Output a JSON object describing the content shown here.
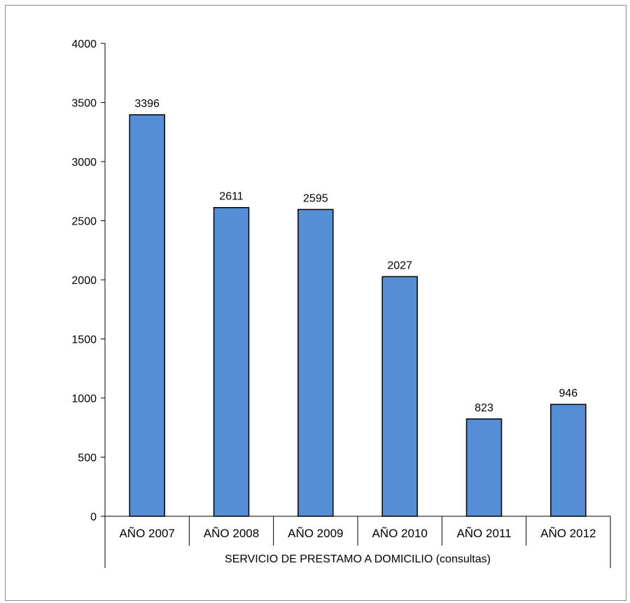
{
  "chart_data": {
    "type": "bar",
    "categories": [
      "AÑO 2007",
      "AÑO 2008",
      "AÑO 2009",
      "AÑO 2010",
      "AÑO 2011",
      "AÑO 2012"
    ],
    "values": [
      3396,
      2611,
      2595,
      2027,
      823,
      946
    ],
    "group_label": "SERVICIO DE PRESTAMO A DOMICILIO (consultas)",
    "title": "",
    "xlabel": "",
    "ylabel": "",
    "ylim": [
      0,
      4000
    ],
    "yticks": [
      0,
      500,
      1000,
      1500,
      2000,
      2500,
      3000,
      3500,
      4000
    ],
    "data_labels": true,
    "grid": false,
    "legend": "none",
    "bar_color": "#558ed5",
    "bar_edge_color": "#000000"
  }
}
